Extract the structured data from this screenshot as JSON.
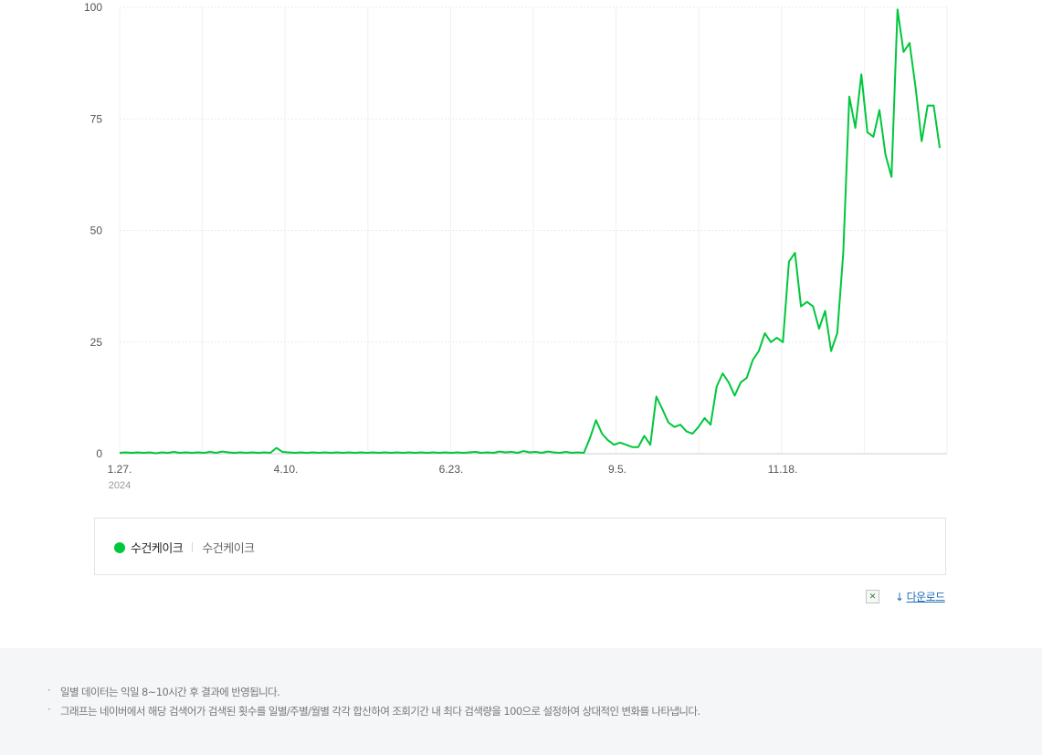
{
  "chart_data": {
    "type": "line",
    "title": "",
    "xlabel": "",
    "ylabel": "",
    "ylim": [
      0,
      100
    ],
    "yticks": [
      "0",
      "25",
      "50",
      "75",
      "100"
    ],
    "x_ticks": [
      "1.27.",
      "4.10.",
      "6.23.",
      "9.5.",
      "11.18."
    ],
    "x_year_label": "2024",
    "grid": true,
    "series": [
      {
        "name": "수건케이크",
        "color": "#00c73c",
        "values": [
          0.2,
          0.3,
          0.2,
          0.3,
          0.2,
          0.3,
          0.1,
          0.3,
          0.2,
          0.4,
          0.2,
          0.3,
          0.2,
          0.3,
          0.2,
          0.4,
          0.2,
          0.5,
          0.3,
          0.2,
          0.3,
          0.2,
          0.3,
          0.2,
          0.3,
          0.2,
          1.3,
          0.4,
          0.3,
          0.2,
          0.3,
          0.2,
          0.3,
          0.2,
          0.3,
          0.2,
          0.3,
          0.2,
          0.3,
          0.2,
          0.3,
          0.2,
          0.3,
          0.2,
          0.3,
          0.2,
          0.3,
          0.2,
          0.3,
          0.2,
          0.3,
          0.2,
          0.3,
          0.2,
          0.3,
          0.2,
          0.3,
          0.2,
          0.3,
          0.4,
          0.2,
          0.3,
          0.2,
          0.5,
          0.3,
          0.4,
          0.2,
          0.6,
          0.3,
          0.4,
          0.2,
          0.5,
          0.3,
          0.2,
          0.4,
          0.2,
          0.3,
          0.2,
          3.5,
          7.5,
          4.5,
          3,
          2,
          2.5,
          2,
          1.5,
          1.5,
          4,
          2,
          12.8,
          10,
          7,
          6,
          6.5,
          5,
          4.5,
          6,
          8,
          6.5,
          15,
          18,
          16,
          13,
          16,
          17,
          21,
          23,
          27,
          25,
          26,
          25,
          43,
          45,
          33,
          34,
          33,
          28,
          32,
          23,
          27,
          45,
          80,
          73,
          85,
          72,
          71,
          77,
          67,
          62,
          99.5,
          90,
          92,
          82,
          70,
          78,
          78,
          68.5
        ]
      }
    ]
  },
  "legend": {
    "name": "수건케이크",
    "terms": "수건케이크"
  },
  "download": {
    "label": "다운로드",
    "icon": "download-arrow-icon",
    "excel_icon": "excel-icon"
  },
  "notes": [
    "일별 데이터는 익일 8~10시간 후 결과에 반영됩니다.",
    "그래프는 네이버에서 해당 검색어가 검색된 횟수를 일별/주별/월별 각각 합산하여 조회기간 내 최다 검색량을 100으로 설정하여 상대적인 변화를 나타냅니다."
  ],
  "colors": {
    "line": "#00c73c",
    "grid": "#ebebeb",
    "axis_text": "#555555",
    "notes_bg": "#f5f6f8"
  }
}
